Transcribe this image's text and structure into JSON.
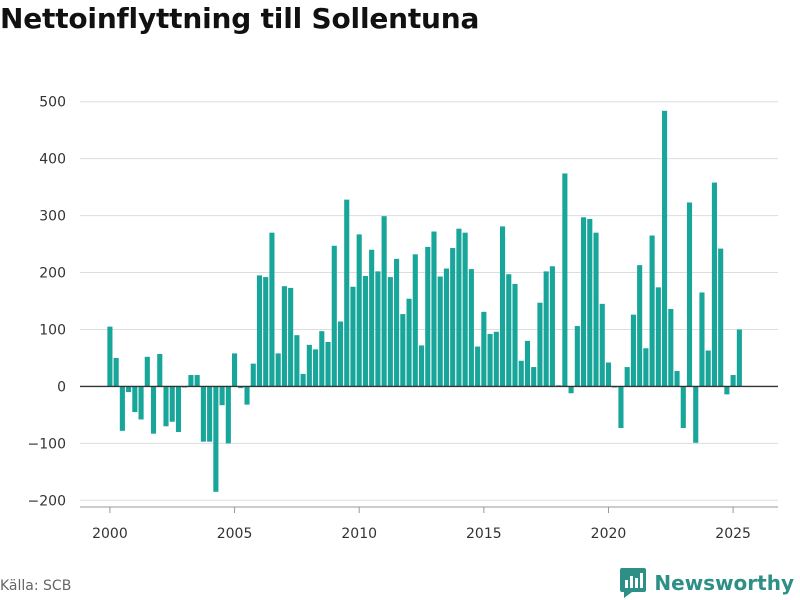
{
  "title": "Nettoinflyttning till Sollentuna",
  "source": "Källa: SCB",
  "brand": {
    "name": "Newsworthy",
    "icon": "newsworthy-logo-icon",
    "color": "#2e8f86"
  },
  "colors": {
    "bar": "#18a69a",
    "grid": "#dddddd",
    "zero_line": "#333333",
    "axis_text": "#333333"
  },
  "chart_data": {
    "type": "bar",
    "title": "Nettoinflyttning till Sollentuna",
    "xlabel": "",
    "ylabel": "",
    "ylim": [
      -210,
      510
    ],
    "xlim": [
      1998.8,
      2026.8
    ],
    "x_ticks": [
      2000,
      2005,
      2010,
      2015,
      2020,
      2025
    ],
    "y_ticks": [
      -200,
      -100,
      0,
      100,
      200,
      300,
      400,
      500
    ],
    "y_tick_labels": [
      "−200",
      "−100",
      "0",
      "100",
      "200",
      "300",
      "400",
      "500"
    ],
    "grid": "horizontal",
    "start_year": 2000,
    "periods_per_year": 4,
    "values": [
      105,
      50,
      -78,
      -10,
      -45,
      -58,
      52,
      -83,
      57,
      -70,
      -62,
      -80,
      -2,
      20,
      20,
      -97,
      -97,
      -185,
      -33,
      -100,
      58,
      -3,
      -32,
      40,
      195,
      192,
      270,
      58,
      176,
      173,
      90,
      22,
      73,
      65,
      97,
      78,
      247,
      114,
      328,
      175,
      267,
      194,
      240,
      202,
      299,
      192,
      224,
      127,
      154,
      232,
      72,
      245,
      272,
      193,
      207,
      243,
      277,
      270,
      206,
      70,
      131,
      92,
      96,
      281,
      197,
      180,
      45,
      80,
      34,
      147,
      202,
      211,
      2,
      374,
      -12,
      106,
      297,
      294,
      270,
      145,
      42,
      -2,
      -73,
      34,
      126,
      213,
      67,
      265,
      174,
      484,
      136,
      27,
      -73,
      323,
      -99,
      165,
      63,
      358,
      242,
      -14,
      20,
      100
    ]
  }
}
